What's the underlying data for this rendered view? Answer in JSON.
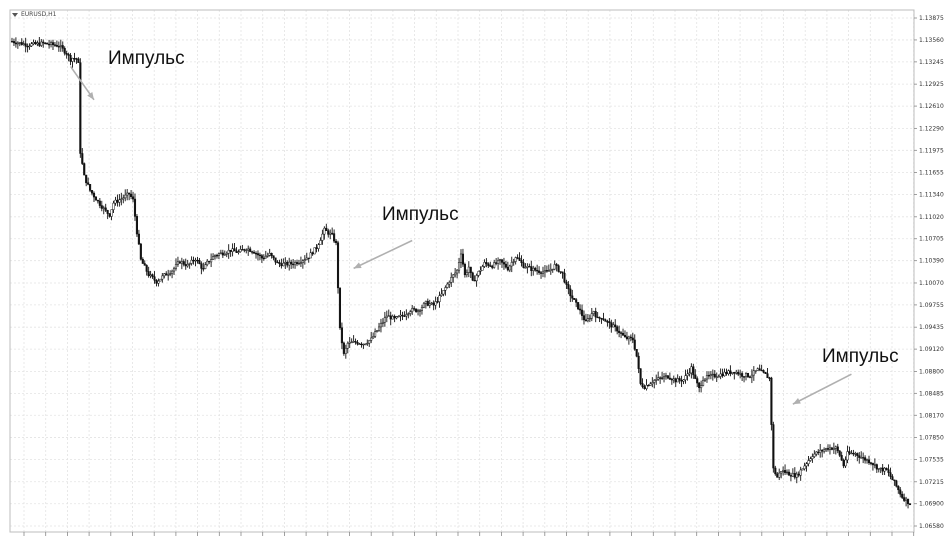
{
  "symbol": "EURUSD,H1",
  "chart_data": {
    "type": "candlestick",
    "y_ticks": [
      "1.13875",
      "1.13560",
      "1.13245",
      "1.12925",
      "1.12610",
      "1.12290",
      "1.11975",
      "1.11655",
      "1.11340",
      "1.11020",
      "1.10705",
      "1.10390",
      "1.10070",
      "1.09755",
      "1.09435",
      "1.09120",
      "1.08800",
      "1.08485",
      "1.08170",
      "1.07850",
      "1.07535",
      "1.07215",
      "1.06900",
      "1.06580"
    ],
    "ylim": [
      1.0658,
      1.13875
    ],
    "grid": true,
    "annotations": [
      {
        "text": "Импульс",
        "arrow_from": [
          1.1318,
          30
        ],
        "arrow_to": [
          1.127,
          42
        ]
      },
      {
        "text": "Импульс",
        "arrow_from": [
          1.1068,
          205
        ],
        "arrow_to": [
          1.1028,
          175
        ]
      },
      {
        "text": "Импульс",
        "arrow_from": [
          1.0876,
          430
        ],
        "arrow_to": [
          1.0833,
          400
        ]
      }
    ],
    "close_path": [
      [
        0,
        1.1354
      ],
      [
        8,
        1.1349
      ],
      [
        16,
        1.1351
      ],
      [
        24,
        1.1348
      ],
      [
        28,
        1.1337
      ],
      [
        30,
        1.1328
      ],
      [
        31,
        1.133
      ],
      [
        33,
        1.1329
      ],
      [
        34,
        1.1321
      ],
      [
        35,
        1.1195
      ],
      [
        37,
        1.116
      ],
      [
        40,
        1.114
      ],
      [
        44,
        1.1124
      ],
      [
        48,
        1.111
      ],
      [
        50,
        1.1105
      ],
      [
        52,
        1.1122
      ],
      [
        56,
        1.1128
      ],
      [
        60,
        1.1135
      ],
      [
        62,
        1.1126
      ],
      [
        64,
        1.108
      ],
      [
        66,
        1.104
      ],
      [
        70,
        1.1019
      ],
      [
        74,
        1.1009
      ],
      [
        78,
        1.1018
      ],
      [
        82,
        1.1025
      ],
      [
        86,
        1.1038
      ],
      [
        90,
        1.1032
      ],
      [
        94,
        1.1042
      ],
      [
        98,
        1.1026
      ],
      [
        100,
        1.1036
      ],
      [
        104,
        1.1047
      ],
      [
        108,
        1.105
      ],
      [
        112,
        1.1054
      ],
      [
        116,
        1.1051
      ],
      [
        120,
        1.1057
      ],
      [
        124,
        1.1052
      ],
      [
        128,
        1.1043
      ],
      [
        132,
        1.1048
      ],
      [
        136,
        1.1035
      ],
      [
        140,
        1.1034
      ],
      [
        144,
        1.1035
      ],
      [
        148,
        1.1039
      ],
      [
        152,
        1.1045
      ],
      [
        156,
        1.1058
      ],
      [
        160,
        1.1083
      ],
      [
        164,
        1.1075
      ],
      [
        166,
        1.1063
      ],
      [
        168,
        1.094
      ],
      [
        170,
        1.0904
      ],
      [
        172,
        1.092
      ],
      [
        176,
        1.0922
      ],
      [
        180,
        1.092
      ],
      [
        184,
        1.0926
      ],
      [
        188,
        1.0943
      ],
      [
        192,
        1.096
      ],
      [
        196,
        1.0955
      ],
      [
        200,
        1.096
      ],
      [
        204,
        1.0968
      ],
      [
        208,
        1.0968
      ],
      [
        212,
        1.0978
      ],
      [
        216,
        1.0975
      ],
      [
        220,
        1.099
      ],
      [
        224,
        1.101
      ],
      [
        228,
        1.1025
      ],
      [
        230,
        1.1051
      ],
      [
        232,
        1.1018
      ],
      [
        234,
        1.103
      ],
      [
        236,
        1.1008
      ],
      [
        238,
        1.1018
      ],
      [
        242,
        1.1035
      ],
      [
        246,
        1.1032
      ],
      [
        250,
        1.1038
      ],
      [
        254,
        1.1028
      ],
      [
        258,
        1.1045
      ],
      [
        262,
        1.1032
      ],
      [
        266,
        1.1027
      ],
      [
        270,
        1.1024
      ],
      [
        274,
        1.1022
      ],
      [
        278,
        1.1032
      ],
      [
        282,
        1.102
      ],
      [
        284,
        1.1002
      ],
      [
        286,
        1.099
      ],
      [
        290,
        1.0972
      ],
      [
        294,
        1.095
      ],
      [
        298,
        1.0967
      ],
      [
        300,
        1.0955
      ],
      [
        302,
        1.0958
      ],
      [
        306,
        1.0948
      ],
      [
        310,
        1.094
      ],
      [
        314,
        1.0928
      ],
      [
        318,
        1.0926
      ],
      [
        320,
        1.0902
      ],
      [
        322,
        1.0862
      ],
      [
        324,
        1.0858
      ],
      [
        328,
        1.0866
      ],
      [
        332,
        1.087
      ],
      [
        336,
        1.0873
      ],
      [
        340,
        1.0867
      ],
      [
        344,
        1.0868
      ],
      [
        348,
        1.0885
      ],
      [
        350,
        1.0868
      ],
      [
        352,
        1.0855
      ],
      [
        354,
        1.087
      ],
      [
        358,
        1.0873
      ],
      [
        362,
        1.0875
      ],
      [
        366,
        1.0878
      ],
      [
        370,
        1.088
      ],
      [
        374,
        1.0875
      ],
      [
        378,
        1.0874
      ],
      [
        382,
        1.0882
      ],
      [
        386,
        1.0875
      ],
      [
        388,
        1.087
      ],
      [
        390,
        1.074
      ],
      [
        392,
        1.0728
      ],
      [
        394,
        1.0738
      ],
      [
        398,
        1.0733
      ],
      [
        402,
        1.073
      ],
      [
        406,
        1.0745
      ],
      [
        410,
        1.076
      ],
      [
        414,
        1.0765
      ],
      [
        418,
        1.077
      ],
      [
        422,
        1.077
      ],
      [
        424,
        1.076
      ],
      [
        426,
        1.0745
      ],
      [
        428,
        1.0762
      ],
      [
        432,
        1.0762
      ],
      [
        436,
        1.0755
      ],
      [
        440,
        1.075
      ],
      [
        444,
        1.074
      ],
      [
        448,
        1.0738
      ],
      [
        452,
        1.072
      ],
      [
        456,
        1.07
      ],
      [
        460,
        1.069
      ]
    ]
  }
}
